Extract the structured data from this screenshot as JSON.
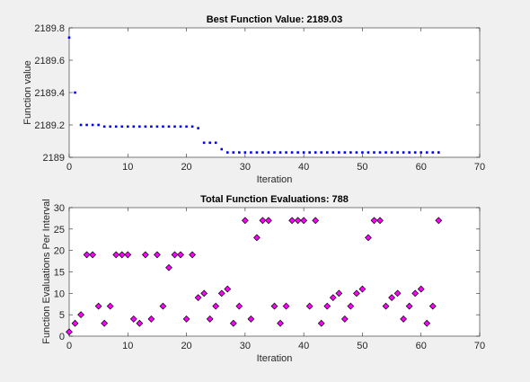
{
  "figure": {
    "background": "#f0f0f0",
    "axes_background": "#ffffff",
    "axis_color": "#262626"
  },
  "chart_data": [
    {
      "type": "scatter",
      "title": "Best Function Value: 2189.03",
      "xlabel": "Iteration",
      "ylabel": "Function value",
      "xlim": [
        0,
        70
      ],
      "ylim": [
        2189,
        2189.8
      ],
      "xticks": [
        0,
        10,
        20,
        30,
        40,
        50,
        60,
        70
      ],
      "yticks": [
        2189,
        2189.2,
        2189.4,
        2189.6,
        2189.8
      ],
      "xtick_labels": [
        "0",
        "10",
        "20",
        "30",
        "40",
        "50",
        "60",
        "70"
      ],
      "ytick_labels": [
        "2189",
        "2189.2",
        "2189.4",
        "2189.6",
        "2189.8"
      ],
      "grid": false,
      "marker": "point",
      "marker_color": "#0000ff",
      "x": [
        0,
        1,
        2,
        3,
        4,
        5,
        6,
        7,
        8,
        9,
        10,
        11,
        12,
        13,
        14,
        15,
        16,
        17,
        18,
        19,
        20,
        21,
        22,
        23,
        24,
        25,
        26,
        27,
        28,
        29,
        30,
        31,
        32,
        33,
        34,
        35,
        36,
        37,
        38,
        39,
        40,
        41,
        42,
        43,
        44,
        45,
        46,
        47,
        48,
        49,
        50,
        51,
        52,
        53,
        54,
        55,
        56,
        57,
        58,
        59,
        60,
        61,
        62,
        63
      ],
      "y": [
        2189.74,
        2189.4,
        2189.2,
        2189.2,
        2189.2,
        2189.2,
        2189.19,
        2189.19,
        2189.19,
        2189.19,
        2189.19,
        2189.19,
        2189.19,
        2189.19,
        2189.19,
        2189.19,
        2189.19,
        2189.19,
        2189.19,
        2189.19,
        2189.19,
        2189.19,
        2189.18,
        2189.09,
        2189.09,
        2189.09,
        2189.05,
        2189.03,
        2189.03,
        2189.03,
        2189.03,
        2189.03,
        2189.03,
        2189.03,
        2189.03,
        2189.03,
        2189.03,
        2189.03,
        2189.03,
        2189.03,
        2189.03,
        2189.03,
        2189.03,
        2189.03,
        2189.03,
        2189.03,
        2189.03,
        2189.03,
        2189.03,
        2189.03,
        2189.03,
        2189.03,
        2189.03,
        2189.03,
        2189.03,
        2189.03,
        2189.03,
        2189.03,
        2189.03,
        2189.03,
        2189.03,
        2189.03,
        2189.03,
        2189.03
      ]
    },
    {
      "type": "scatter",
      "title": "Total Function Evaluations: 788",
      "xlabel": "Iteration",
      "ylabel": "Function Evaluations Per Interval",
      "xlim": [
        0,
        70
      ],
      "ylim": [
        0,
        30
      ],
      "xticks": [
        0,
        10,
        20,
        30,
        40,
        50,
        60,
        70
      ],
      "yticks": [
        0,
        5,
        10,
        15,
        20,
        25,
        30
      ],
      "xtick_labels": [
        "0",
        "10",
        "20",
        "30",
        "40",
        "50",
        "60",
        "70"
      ],
      "ytick_labels": [
        "0",
        "5",
        "10",
        "15",
        "20",
        "25",
        "30"
      ],
      "grid": false,
      "marker": "diamond",
      "marker_color": "#ff00ff",
      "marker_edge": "#000000",
      "x": [
        0,
        1,
        2,
        3,
        4,
        5,
        6,
        7,
        8,
        9,
        10,
        11,
        12,
        13,
        14,
        15,
        16,
        17,
        18,
        19,
        20,
        21,
        22,
        23,
        24,
        25,
        26,
        27,
        28,
        29,
        30,
        31,
        32,
        33,
        34,
        35,
        36,
        37,
        38,
        39,
        40,
        41,
        42,
        43,
        44,
        45,
        46,
        47,
        48,
        49,
        50,
        51,
        52,
        53,
        54,
        55,
        56,
        57,
        58,
        59,
        60,
        61,
        62,
        63
      ],
      "y": [
        1,
        3,
        5,
        19,
        19,
        7,
        3,
        7,
        19,
        19,
        19,
        4,
        3,
        19,
        4,
        19,
        7,
        16,
        19,
        19,
        4,
        19,
        9,
        10,
        4,
        7,
        10,
        11,
        3,
        7,
        27,
        4,
        23,
        27,
        27,
        7,
        3,
        7,
        27,
        27,
        27,
        7,
        27,
        3,
        7,
        9,
        10,
        4,
        7,
        10,
        11,
        23,
        27,
        27,
        7,
        9,
        10,
        4,
        7,
        10,
        11,
        3,
        7,
        27
      ]
    }
  ]
}
